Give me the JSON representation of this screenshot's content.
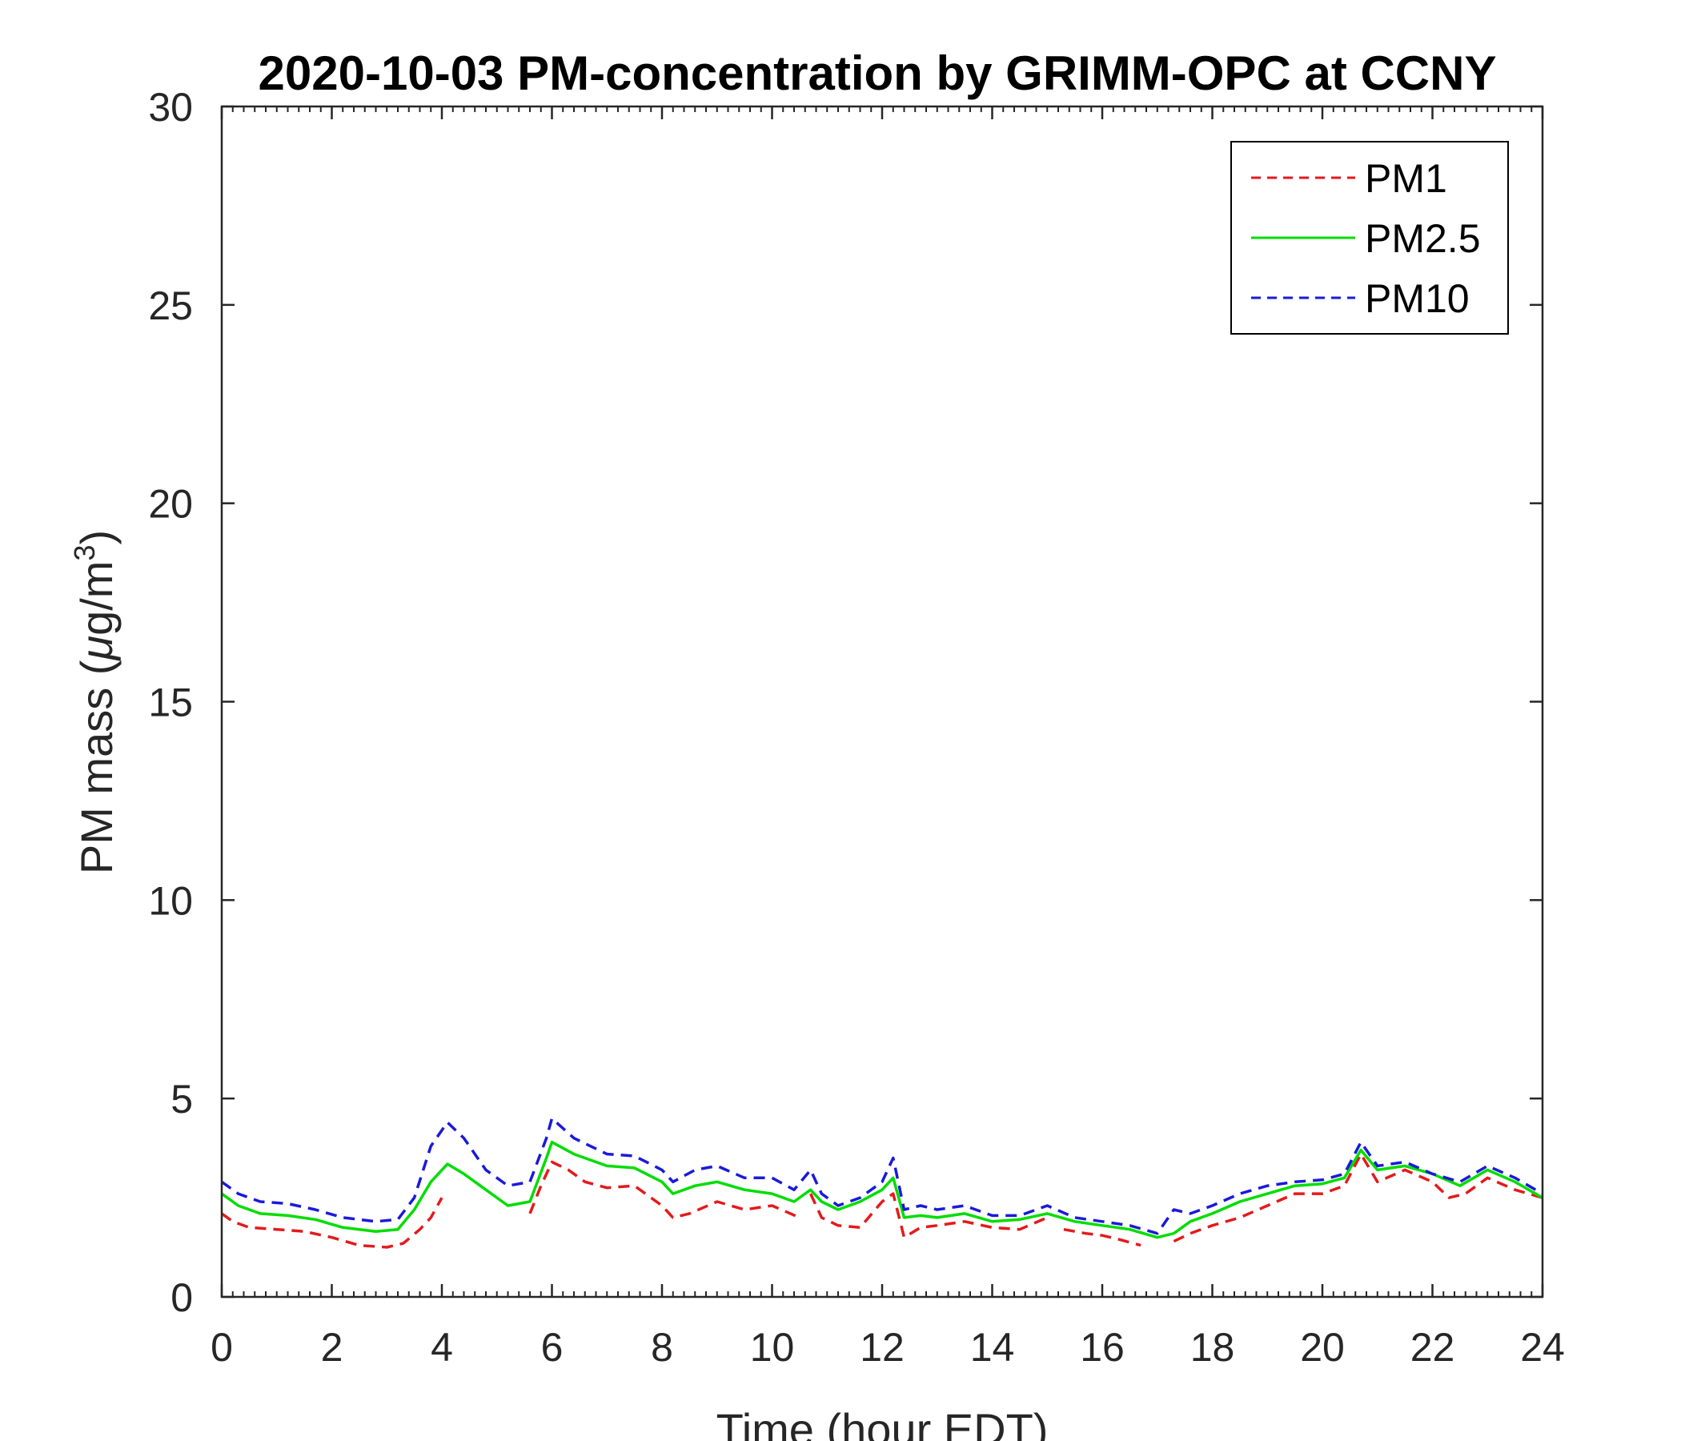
{
  "chart_data": {
    "type": "line",
    "title": "2020-10-03 PM-concentration by GRIMM-OPC at CCNY",
    "xlabel": "Time (hour EDT)",
    "ylabel_main": "PM mass (",
    "ylabel_mu": "μ",
    "ylabel_unit": "g/m",
    "ylabel_sup": "3",
    "ylabel_close": ")",
    "xlim": [
      0,
      24
    ],
    "ylim": [
      0,
      30
    ],
    "xticks": [
      0,
      2,
      4,
      6,
      8,
      10,
      12,
      14,
      16,
      18,
      20,
      22,
      24
    ],
    "yticks": [
      0,
      5,
      10,
      15,
      20,
      25,
      30
    ],
    "grid": false,
    "legend_position": "top-right",
    "series": [
      {
        "name": "PM1",
        "color": "#e41a1c",
        "style": "dashed",
        "segments": [
          [
            [
              0,
              2.1
            ],
            [
              0.2,
              1.9
            ],
            [
              0.5,
              1.75
            ],
            [
              1,
              1.7
            ],
            [
              1.5,
              1.65
            ],
            [
              2,
              1.5
            ],
            [
              2.5,
              1.3
            ],
            [
              3,
              1.25
            ],
            [
              3.3,
              1.35
            ],
            [
              3.6,
              1.7
            ],
            [
              3.8,
              2.0
            ],
            [
              4.0,
              2.5
            ]
          ],
          [
            [
              5.6,
              2.1
            ],
            [
              5.8,
              2.8
            ],
            [
              6.0,
              3.4
            ],
            [
              6.3,
              3.2
            ],
            [
              6.6,
              2.9
            ],
            [
              7,
              2.75
            ],
            [
              7.5,
              2.8
            ],
            [
              8,
              2.3
            ],
            [
              8.2,
              2.0
            ],
            [
              8.5,
              2.1
            ],
            [
              9,
              2.4
            ],
            [
              9.5,
              2.2
            ],
            [
              10,
              2.3
            ],
            [
              10.5,
              2.0
            ]
          ],
          [
            [
              10.7,
              2.6
            ],
            [
              10.9,
              2.0
            ],
            [
              11.2,
              1.8
            ],
            [
              11.6,
              1.75
            ],
            [
              12,
              2.4
            ],
            [
              12.2,
              2.6
            ],
            [
              12.4,
              1.5
            ],
            [
              12.7,
              1.75
            ],
            [
              13,
              1.8
            ],
            [
              13.5,
              1.9
            ],
            [
              14,
              1.75
            ],
            [
              14.5,
              1.7
            ],
            [
              15,
              2.0
            ]
          ],
          [
            [
              15.3,
              1.7
            ],
            [
              15.7,
              1.6
            ],
            [
              16,
              1.55
            ],
            [
              16.3,
              1.45
            ],
            [
              16.7,
              1.3
            ]
          ],
          [
            [
              17.3,
              1.4
            ],
            [
              17.6,
              1.6
            ],
            [
              18,
              1.8
            ],
            [
              18.5,
              2.0
            ],
            [
              19,
              2.3
            ],
            [
              19.5,
              2.6
            ],
            [
              20,
              2.6
            ],
            [
              20.4,
              2.8
            ],
            [
              20.7,
              3.6
            ],
            [
              21,
              2.9
            ],
            [
              21.5,
              3.2
            ],
            [
              22,
              2.9
            ],
            [
              22.3,
              2.5
            ],
            [
              22.6,
              2.6
            ],
            [
              23,
              3.0
            ],
            [
              23.5,
              2.7
            ],
            [
              24,
              2.5
            ]
          ]
        ]
      },
      {
        "name": "PM2.5",
        "color": "#00dd00",
        "style": "solid",
        "segments": [
          [
            [
              0,
              2.6
            ],
            [
              0.3,
              2.3
            ],
            [
              0.7,
              2.1
            ],
            [
              1.2,
              2.05
            ],
            [
              1.7,
              1.95
            ],
            [
              2.2,
              1.75
            ],
            [
              2.8,
              1.65
            ],
            [
              3.2,
              1.7
            ],
            [
              3.5,
              2.2
            ],
            [
              3.8,
              2.9
            ],
            [
              4.1,
              3.35
            ],
            [
              4.4,
              3.1
            ],
            [
              4.8,
              2.7
            ],
            [
              5.2,
              2.3
            ],
            [
              5.6,
              2.4
            ],
            [
              5.9,
              3.5
            ],
            [
              6.0,
              3.9
            ],
            [
              6.4,
              3.6
            ],
            [
              7,
              3.3
            ],
            [
              7.5,
              3.25
            ],
            [
              8,
              2.9
            ],
            [
              8.2,
              2.6
            ],
            [
              8.6,
              2.8
            ],
            [
              9,
              2.9
            ],
            [
              9.5,
              2.7
            ],
            [
              10,
              2.6
            ],
            [
              10.4,
              2.4
            ],
            [
              10.7,
              2.7
            ],
            [
              10.9,
              2.4
            ],
            [
              11.2,
              2.2
            ],
            [
              11.6,
              2.4
            ],
            [
              12,
              2.7
            ],
            [
              12.2,
              3.0
            ],
            [
              12.4,
              2.0
            ],
            [
              12.7,
              2.05
            ],
            [
              13,
              2.0
            ],
            [
              13.5,
              2.1
            ],
            [
              14,
              1.9
            ],
            [
              14.5,
              1.95
            ],
            [
              15,
              2.1
            ],
            [
              15.5,
              1.9
            ],
            [
              16,
              1.8
            ],
            [
              16.5,
              1.7
            ],
            [
              17,
              1.5
            ],
            [
              17.3,
              1.6
            ],
            [
              17.6,
              1.9
            ],
            [
              18,
              2.1
            ],
            [
              18.5,
              2.4
            ],
            [
              19,
              2.6
            ],
            [
              19.5,
              2.8
            ],
            [
              20,
              2.85
            ],
            [
              20.4,
              3.0
            ],
            [
              20.7,
              3.7
            ],
            [
              21,
              3.2
            ],
            [
              21.5,
              3.3
            ],
            [
              22,
              3.1
            ],
            [
              22.5,
              2.8
            ],
            [
              23,
              3.2
            ],
            [
              23.5,
              2.9
            ],
            [
              24,
              2.5
            ]
          ]
        ]
      },
      {
        "name": "PM10",
        "color": "#1a1adb",
        "style": "dashed",
        "segments": [
          [
            [
              0,
              2.9
            ],
            [
              0.3,
              2.6
            ],
            [
              0.7,
              2.4
            ],
            [
              1.2,
              2.35
            ],
            [
              1.7,
              2.2
            ],
            [
              2.2,
              2.0
            ],
            [
              2.8,
              1.9
            ],
            [
              3.2,
              1.95
            ],
            [
              3.5,
              2.5
            ],
            [
              3.8,
              3.8
            ],
            [
              4.1,
              4.4
            ],
            [
              4.4,
              4.0
            ],
            [
              4.8,
              3.2
            ],
            [
              5.2,
              2.8
            ],
            [
              5.6,
              2.9
            ],
            [
              5.9,
              4.0
            ],
            [
              6.0,
              4.5
            ],
            [
              6.4,
              4.0
            ],
            [
              7,
              3.6
            ],
            [
              7.5,
              3.55
            ],
            [
              8,
              3.2
            ],
            [
              8.2,
              2.9
            ],
            [
              8.6,
              3.2
            ],
            [
              9,
              3.3
            ],
            [
              9.5,
              3.0
            ],
            [
              10,
              3.0
            ],
            [
              10.4,
              2.7
            ],
            [
              10.7,
              3.2
            ],
            [
              10.9,
              2.6
            ],
            [
              11.2,
              2.3
            ],
            [
              11.6,
              2.5
            ],
            [
              12,
              2.9
            ],
            [
              12.2,
              3.5
            ],
            [
              12.4,
              2.2
            ],
            [
              12.7,
              2.3
            ],
            [
              13,
              2.2
            ],
            [
              13.5,
              2.3
            ],
            [
              14,
              2.05
            ],
            [
              14.5,
              2.05
            ],
            [
              15,
              2.3
            ],
            [
              15.5,
              2.0
            ],
            [
              16,
              1.9
            ],
            [
              16.5,
              1.8
            ],
            [
              17,
              1.6
            ],
            [
              17.3,
              2.2
            ],
            [
              17.6,
              2.1
            ],
            [
              18,
              2.3
            ],
            [
              18.5,
              2.6
            ],
            [
              19,
              2.8
            ],
            [
              19.5,
              2.9
            ],
            [
              20,
              2.95
            ],
            [
              20.4,
              3.1
            ],
            [
              20.7,
              3.9
            ],
            [
              21,
              3.3
            ],
            [
              21.5,
              3.4
            ],
            [
              22,
              3.1
            ],
            [
              22.5,
              2.9
            ],
            [
              23,
              3.3
            ],
            [
              23.5,
              3.0
            ],
            [
              24,
              2.6
            ]
          ]
        ]
      }
    ]
  }
}
